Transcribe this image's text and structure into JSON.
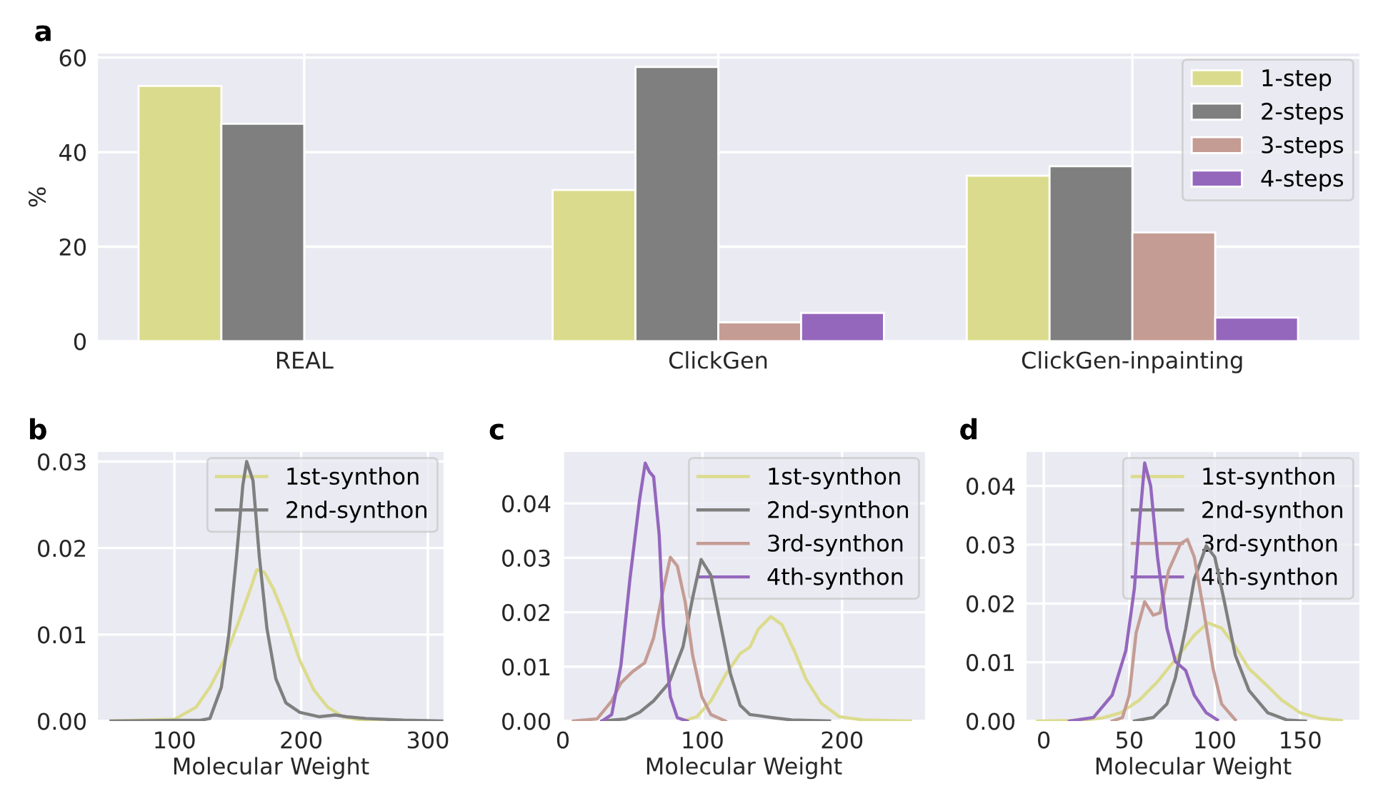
{
  "chart_data": [
    {
      "type": "bar",
      "title": "a",
      "ylabel": "%",
      "categories": [
        "REAL",
        "ClickGen",
        "ClickGen-inpainting"
      ],
      "series": [
        {
          "name": "1-step",
          "color": "#dbdb8d",
          "values": [
            54,
            32,
            35
          ]
        },
        {
          "name": "2-steps",
          "color": "#7f7f7f",
          "values": [
            46,
            58,
            37
          ]
        },
        {
          "name": "3-steps",
          "color": "#c49c94",
          "values": [
            null,
            4,
            23
          ]
        },
        {
          "name": "4-steps",
          "color": "#9467bd",
          "values": [
            null,
            6,
            5
          ]
        }
      ],
      "ylim": [
        0,
        61
      ],
      "yticks": [
        0,
        20,
        40,
        60
      ],
      "grid": true,
      "legend": "top right"
    },
    {
      "type": "line",
      "title": "b",
      "xlabel": "Molecular Weight",
      "series": [
        {
          "name": "1st-synthon",
          "color": "#dbdb8d",
          "x": [
            50,
            100,
            117,
            128,
            139,
            150,
            160,
            165,
            171,
            178,
            188,
            199,
            210,
            221,
            233,
            248,
            263
          ],
          "values": [
            0,
            0.0002,
            0.0016,
            0.0039,
            0.007,
            0.0112,
            0.0153,
            0.0175,
            0.0172,
            0.0153,
            0.0117,
            0.007,
            0.0036,
            0.0016,
            0.0005,
            0.0001,
            0
          ]
        },
        {
          "name": "2nd-synthon",
          "color": "#7f7f7f",
          "x": [
            50,
            121,
            128,
            137,
            143,
            149,
            154,
            157,
            162,
            167,
            173,
            180,
            188,
            199,
            214,
            227,
            236,
            251,
            281,
            311
          ],
          "values": [
            0,
            0.0001,
            0.0003,
            0.0039,
            0.0101,
            0.019,
            0.0273,
            0.03,
            0.0278,
            0.019,
            0.0107,
            0.0049,
            0.0021,
            0.001,
            0.0005,
            0.0007,
            0.0005,
            0.0003,
            0.0001,
            0
          ]
        }
      ],
      "xlim": [
        39,
        313
      ],
      "xticks": [
        100,
        200,
        300
      ],
      "ylim": [
        0,
        0.0312
      ],
      "yticks": [
        {
          "value": 0,
          "label": "0.00"
        },
        {
          "value": 0.01,
          "label": "0.01"
        },
        {
          "value": 0.02,
          "label": "0.02"
        },
        {
          "value": 0.03,
          "label": "0.03"
        }
      ],
      "grid": true,
      "legend": "top right"
    },
    {
      "type": "line",
      "title": "c",
      "xlabel": "Molecular Weight",
      "series": [
        {
          "name": "1st-synthon",
          "color": "#dbdb8d",
          "x": [
            86,
            96,
            106,
            117,
            127,
            134,
            140,
            149,
            157,
            166,
            174,
            185,
            198,
            215,
            249
          ],
          "values": [
            0,
            0.0008,
            0.0037,
            0.0087,
            0.0124,
            0.0136,
            0.0169,
            0.0192,
            0.0177,
            0.0128,
            0.0078,
            0.0033,
            0.0008,
            0.0002,
            0
          ]
        },
        {
          "name": "2nd-synthon",
          "color": "#7f7f7f",
          "x": [
            28,
            45,
            55,
            65,
            76,
            86,
            93,
            99,
            106,
            113,
            120,
            127,
            134,
            140,
            151,
            164,
            191
          ],
          "values": [
            0,
            0.0004,
            0.0016,
            0.0037,
            0.007,
            0.0136,
            0.0227,
            0.0297,
            0.0268,
            0.0177,
            0.0087,
            0.0029,
            0.0012,
            0.001,
            0.0006,
            0.0002,
            0
          ]
        },
        {
          "name": "3rd-synthon",
          "color": "#c49c94",
          "x": [
            7.5,
            24.5,
            35,
            41.6,
            50,
            58.6,
            65,
            72,
            77,
            82,
            87.6,
            93,
            99.5,
            106,
            116.5
          ],
          "values": [
            0,
            0.0004,
            0.0037,
            0.007,
            0.0091,
            0.0107,
            0.0153,
            0.0243,
            0.0301,
            0.0285,
            0.0219,
            0.012,
            0.0045,
            0.0012,
            0
          ]
        },
        {
          "name": "4th-synthon",
          "color": "#9467bd",
          "x": [
            28,
            35,
            41.6,
            48,
            55,
            59,
            62,
            65,
            69,
            72,
            77,
            82,
            89
          ],
          "values": [
            0,
            0.0012,
            0.0103,
            0.026,
            0.0408,
            0.0474,
            0.0458,
            0.0449,
            0.0342,
            0.0177,
            0.0045,
            0.0006,
            0
          ]
        }
      ],
      "xlim": [
        -1,
        260
      ],
      "xticks": [
        0,
        100,
        200
      ],
      "ylim": [
        0,
        0.0496
      ],
      "yticks": [
        {
          "value": 0,
          "label": "0.00"
        },
        {
          "value": 0.01,
          "label": "0.01"
        },
        {
          "value": 0.02,
          "label": "0.02"
        },
        {
          "value": 0.03,
          "label": "0.03"
        },
        {
          "value": 0.04,
          "label": "0.04"
        }
      ],
      "grid": true,
      "legend": "top right"
    },
    {
      "type": "line",
      "title": "d",
      "xlabel": "Molecular Weight",
      "series": [
        {
          "name": "1st-synthon",
          "color": "#dbdb8d",
          "x": [
            -3.5,
            21,
            34,
            45,
            56,
            66.5,
            77,
            88,
            96,
            104,
            112,
            120,
            131,
            139,
            150,
            161,
            174
          ],
          "values": [
            0,
            0.0001,
            0.0005,
            0.0014,
            0.0036,
            0.0067,
            0.0105,
            0.0146,
            0.0167,
            0.0158,
            0.0127,
            0.0089,
            0.0059,
            0.0036,
            0.0014,
            0.0005,
            0.0001
          ]
        },
        {
          "name": "2nd-synthon",
          "color": "#7f7f7f",
          "x": [
            53,
            64,
            72,
            77,
            83,
            88,
            95,
            100,
            105.6,
            112,
            120,
            131,
            142,
            153
          ],
          "values": [
            0,
            0.0006,
            0.0029,
            0.0074,
            0.0158,
            0.0241,
            0.0298,
            0.0279,
            0.0203,
            0.0112,
            0.0052,
            0.0014,
            0.0002,
            0
          ]
        },
        {
          "name": "3rd-synthon",
          "color": "#c49c94",
          "x": [
            40,
            46,
            50,
            54,
            59,
            64,
            68,
            73,
            80,
            84,
            88,
            93.5,
            99,
            104,
            112
          ],
          "values": [
            0,
            0.0006,
            0.0044,
            0.015,
            0.0203,
            0.018,
            0.0184,
            0.0256,
            0.0302,
            0.0309,
            0.0279,
            0.0188,
            0.0089,
            0.0029,
            0.0002
          ]
        },
        {
          "name": "4th-synthon",
          "color": "#9467bd",
          "x": [
            15,
            29,
            40,
            48,
            53,
            56,
            59,
            62.5,
            66.5,
            72,
            77,
            83,
            88,
            95,
            101.5
          ],
          "values": [
            0,
            0.0006,
            0.0044,
            0.012,
            0.0226,
            0.0339,
            0.0439,
            0.04,
            0.0279,
            0.0158,
            0.0101,
            0.0086,
            0.0044,
            0.0014,
            0.0002
          ]
        }
      ],
      "xlim": [
        -10.5,
        185
      ],
      "xticks": [
        0,
        50,
        100,
        150
      ],
      "ylim": [
        0,
        0.0459
      ],
      "yticks": [
        {
          "value": 0,
          "label": "0.00"
        },
        {
          "value": 0.01,
          "label": "0.01"
        },
        {
          "value": 0.02,
          "label": "0.02"
        },
        {
          "value": 0.03,
          "label": "0.03"
        },
        {
          "value": 0.04,
          "label": "0.04"
        }
      ],
      "grid": true,
      "legend": "top right"
    }
  ]
}
